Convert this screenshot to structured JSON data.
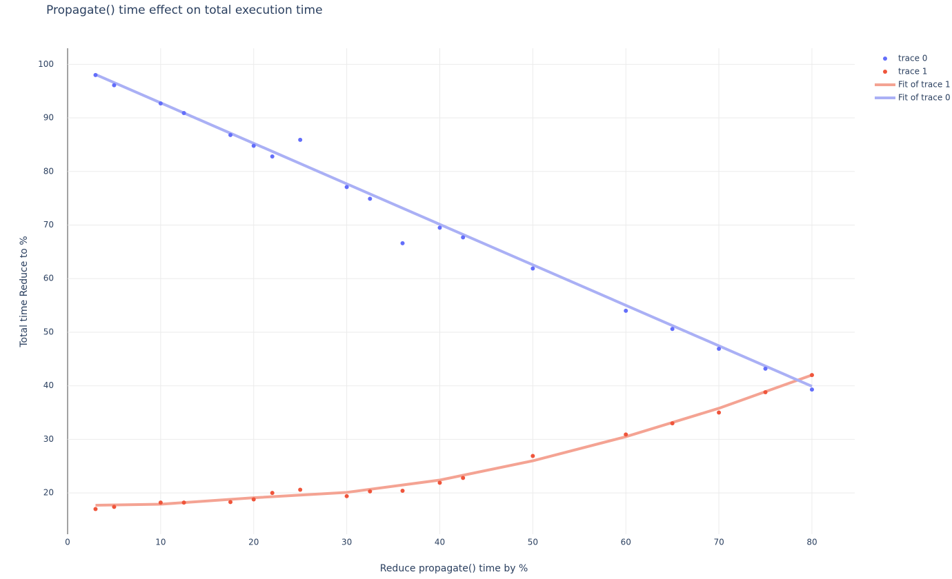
{
  "chart_data": {
    "type": "scatter",
    "title": "Propagate() time effect on total execution time",
    "x_label": "Reduce propagate() time by %",
    "y_label": "Total time Reduce to %",
    "xlim": [
      0,
      84.6
    ],
    "ylim": [
      12.3,
      103
    ],
    "xticks": [
      0,
      10,
      20,
      30,
      40,
      50,
      60,
      70,
      80
    ],
    "yticks": [
      20,
      30,
      40,
      50,
      60,
      70,
      80,
      90,
      100
    ],
    "grid": true,
    "legend": "top-right",
    "series": [
      {
        "name": "trace 0",
        "color": "#636efa",
        "mode": "markers",
        "x": [
          3,
          5,
          10,
          12.5,
          17.5,
          20,
          22,
          25,
          30,
          32.5,
          36,
          40,
          42.5,
          50,
          60,
          65,
          70,
          75,
          80
        ],
        "values": [
          98,
          96.1,
          92.7,
          90.9,
          86.8,
          84.8,
          82.8,
          85.9,
          77.1,
          74.9,
          66.6,
          69.5,
          67.7,
          61.9,
          54.0,
          50.6,
          46.9,
          43.2,
          39.3
        ]
      },
      {
        "name": "trace 1",
        "color": "#ef553b",
        "mode": "markers",
        "x": [
          3,
          5,
          10,
          12.5,
          17.5,
          20,
          22,
          25,
          30,
          32.5,
          36,
          40,
          42.5,
          50,
          60,
          65,
          70,
          75,
          80
        ],
        "values": [
          17.0,
          17.4,
          18.2,
          18.2,
          18.3,
          18.8,
          20.0,
          20.6,
          19.4,
          20.3,
          20.4,
          21.9,
          22.8,
          26.9,
          30.9,
          33.0,
          35.0,
          38.8,
          42.0
        ]
      },
      {
        "name": "Fit of trace 1",
        "color": "#f4a393",
        "mode": "lines",
        "x": [
          3,
          10,
          20,
          30,
          40,
          50,
          60,
          70,
          80
        ],
        "values": [
          17.7,
          17.9,
          19.1,
          20.1,
          22.4,
          26.0,
          30.5,
          35.8,
          42.0
        ]
      },
      {
        "name": "Fit of trace 0",
        "color": "#aab0f5",
        "mode": "lines",
        "x": [
          3,
          80
        ],
        "values": [
          98.1,
          39.9
        ]
      }
    ]
  }
}
